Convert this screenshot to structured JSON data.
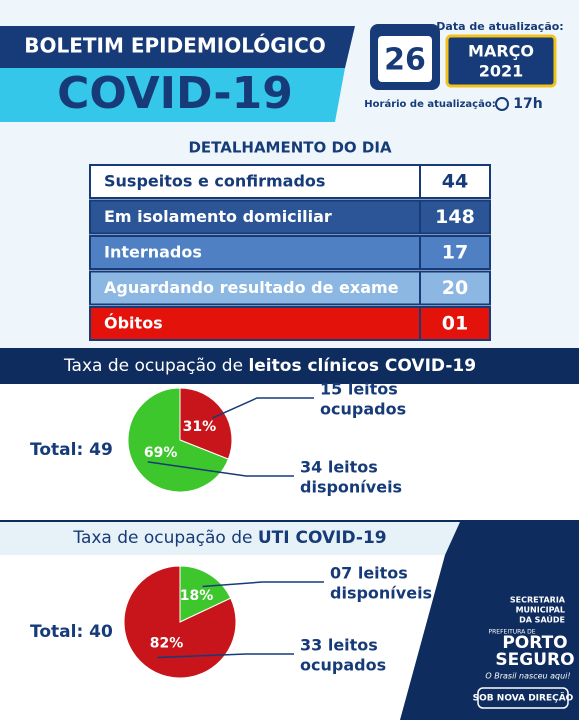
{
  "header": {
    "title_line1": "BOLETIM EPIDEMIOLÓGICO",
    "title_line2": "COVID-19",
    "update_label": "Data de atualização:",
    "day": "26",
    "month": "MARÇO",
    "year": "2021",
    "time_label": "Horário de atualização:",
    "time": "17h"
  },
  "table": {
    "title": "DETALHAMENTO DO DIA",
    "rows": [
      [
        "Suspeitos e confirmados",
        "44"
      ],
      [
        "Em isolamento domiciliar",
        "148"
      ],
      [
        "Internados",
        "17"
      ],
      [
        "Aguardando resultado de exame",
        "20"
      ],
      [
        "Óbitos",
        "01"
      ]
    ]
  },
  "charts": [
    {
      "type": "pie",
      "title_prefix": "Taxa de ocupação de ",
      "title_bold": "leitos clínicos COVID-19",
      "total": "Total: 49",
      "values": [
        31,
        69
      ],
      "value_labels": [
        "31%",
        "69%"
      ],
      "colors": [
        "#c8141b",
        "#3ec62d"
      ],
      "annotations": [
        [
          "15 leitos",
          "ocupados"
        ],
        [
          "34 leitos",
          "disponíveis"
        ]
      ]
    },
    {
      "type": "pie",
      "title_prefix": "Taxa de ocupação de ",
      "title_bold": "UTI COVID-19",
      "total": "Total: 40",
      "values": [
        18,
        82
      ],
      "value_labels": [
        "18%",
        "82%"
      ],
      "colors": [
        "#3ec62d",
        "#c8141b"
      ],
      "annotations": [
        [
          "07 leitos",
          "disponíveis"
        ],
        [
          "33 leitos",
          "ocupados"
        ]
      ]
    }
  ],
  "footer": {
    "secretaria": [
      "SECRETARIA",
      "MUNICIPAL",
      "DA SAÚDE"
    ],
    "prefeitura": "PREFEITURA DE",
    "city": [
      "PORTO",
      "SEGURO"
    ],
    "slogan": "O Brasil nasceu aqui!",
    "badge": "SOB NOVA DIREÇÃO"
  }
}
